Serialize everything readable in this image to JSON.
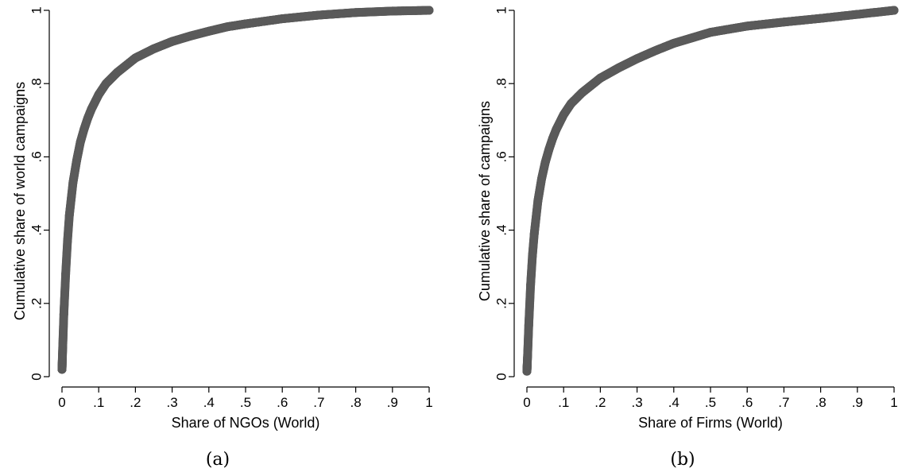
{
  "chart_data": [
    {
      "type": "scatter",
      "caption": "(a)",
      "xlabel": "Share of NGOs (World)",
      "ylabel": "Cumulative share of world campaigns",
      "xlim": [
        0,
        1
      ],
      "ylim": [
        0,
        1
      ],
      "xticks": [
        "0",
        ".1",
        ".2",
        ".3",
        ".4",
        ".5",
        ".6",
        ".7",
        ".8",
        ".9",
        "1"
      ],
      "yticks": [
        "0",
        ".2",
        ".4",
        ".6",
        ".8",
        "1"
      ],
      "grid": false,
      "series": [
        {
          "x": [
            0,
            0.002,
            0.005,
            0.01,
            0.015,
            0.02,
            0.03,
            0.04,
            0.05,
            0.06,
            0.07,
            0.08,
            0.1,
            0.12,
            0.15,
            0.2,
            0.25,
            0.3,
            0.35,
            0.4,
            0.45,
            0.5,
            0.6,
            0.7,
            0.8,
            0.9,
            1.0
          ],
          "y": [
            0.02,
            0.08,
            0.17,
            0.28,
            0.37,
            0.44,
            0.53,
            0.59,
            0.64,
            0.675,
            0.705,
            0.73,
            0.77,
            0.8,
            0.83,
            0.87,
            0.895,
            0.915,
            0.93,
            0.943,
            0.955,
            0.963,
            0.977,
            0.987,
            0.994,
            0.998,
            1.0
          ]
        }
      ]
    },
    {
      "type": "scatter",
      "caption": "(b)",
      "xlabel": "Share of Firms (World)",
      "ylabel": "Cumulative share of campaigns",
      "xlim": [
        0,
        1
      ],
      "ylim": [
        0,
        1
      ],
      "xticks": [
        "0",
        ".1",
        ".2",
        ".3",
        ".4",
        ".5",
        ".6",
        ".7",
        ".8",
        ".9",
        "1"
      ],
      "yticks": [
        "0",
        ".2",
        ".4",
        ".6",
        ".8",
        "1"
      ],
      "grid": false,
      "series": [
        {
          "x": [
            0,
            0.002,
            0.005,
            0.01,
            0.015,
            0.02,
            0.03,
            0.04,
            0.05,
            0.06,
            0.07,
            0.08,
            0.1,
            0.12,
            0.15,
            0.2,
            0.25,
            0.3,
            0.35,
            0.4,
            0.45,
            0.5,
            0.6,
            0.7,
            0.8,
            0.9,
            1.0
          ],
          "y": [
            0.015,
            0.06,
            0.14,
            0.25,
            0.33,
            0.39,
            0.48,
            0.54,
            0.585,
            0.62,
            0.65,
            0.675,
            0.715,
            0.745,
            0.775,
            0.815,
            0.843,
            0.868,
            0.89,
            0.91,
            0.925,
            0.94,
            0.957,
            0.968,
            0.978,
            0.989,
            1.0
          ]
        }
      ]
    }
  ]
}
